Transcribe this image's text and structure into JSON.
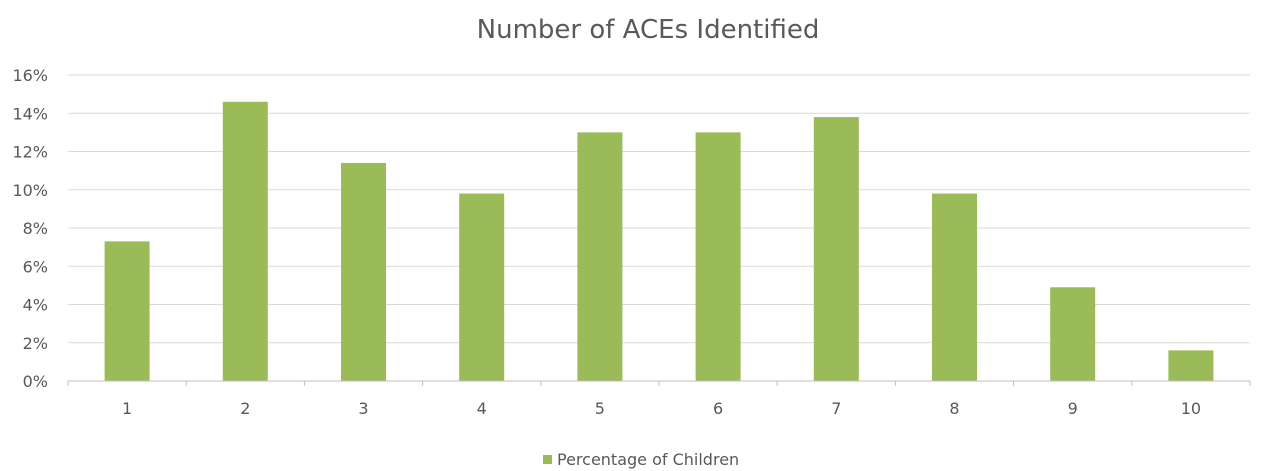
{
  "chart_data": {
    "type": "bar",
    "title": "Number of ACEs Identified",
    "categories": [
      "1",
      "2",
      "3",
      "4",
      "5",
      "6",
      "7",
      "8",
      "9",
      "10"
    ],
    "series": [
      {
        "name": "Percentage of Children",
        "color": "#9bbb59",
        "values": [
          7.3,
          14.6,
          11.4,
          9.8,
          13.0,
          13.0,
          13.8,
          9.8,
          4.9,
          1.6
        ]
      }
    ],
    "ylim": [
      0,
      16
    ],
    "yticks": [
      "0%",
      "2%",
      "4%",
      "6%",
      "8%",
      "10%",
      "12%",
      "14%",
      "16%"
    ],
    "grid": true,
    "legend_position": "bottom"
  }
}
